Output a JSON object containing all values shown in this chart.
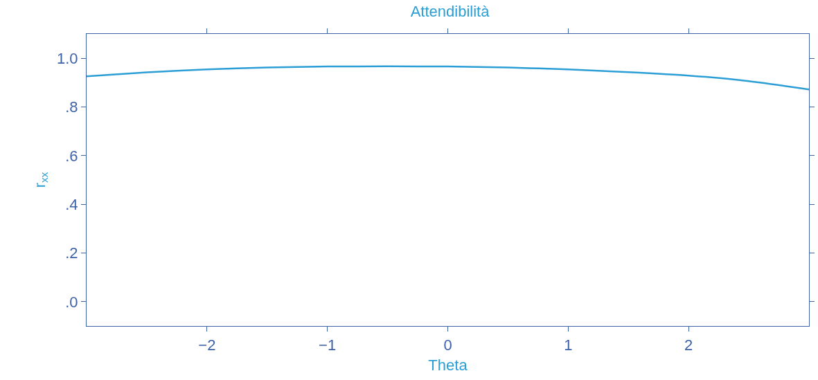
{
  "chart_data": {
    "type": "line",
    "title": "Attendibilità",
    "xlabel": "Theta",
    "ylabel": "r$_{xx}$",
    "x": [
      -3,
      -2.5,
      -2,
      -1.5,
      -1,
      -0.5,
      0,
      0.5,
      1,
      1.5,
      2,
      2.5,
      3
    ],
    "series": [
      {
        "color": "#2b9ed6",
        "values": [
          0.926,
          0.942,
          0.954,
          0.962,
          0.966,
          0.967,
          0.966,
          0.962,
          0.954,
          0.943,
          0.929,
          0.906,
          0.872
        ]
      }
    ],
    "xlim": [
      -3,
      3
    ],
    "ylim": [
      -0.1,
      1.1
    ],
    "xticks": [
      {
        "value": -2,
        "label": "−2"
      },
      {
        "value": -1,
        "label": "−1"
      },
      0,
      1,
      2
    ],
    "yticks": [
      {
        "value": 0,
        "label": ".0"
      },
      {
        "value": 0.2,
        "label": ".2"
      },
      {
        "value": 0.4,
        "label": ".4"
      },
      {
        "value": 0.6,
        "label": ".6"
      },
      {
        "value": 0.8,
        "label": ".8"
      },
      {
        "value": 1,
        "label": "1.0"
      }
    ],
    "grid": false,
    "marker": "none",
    "line_style": "solid"
  }
}
